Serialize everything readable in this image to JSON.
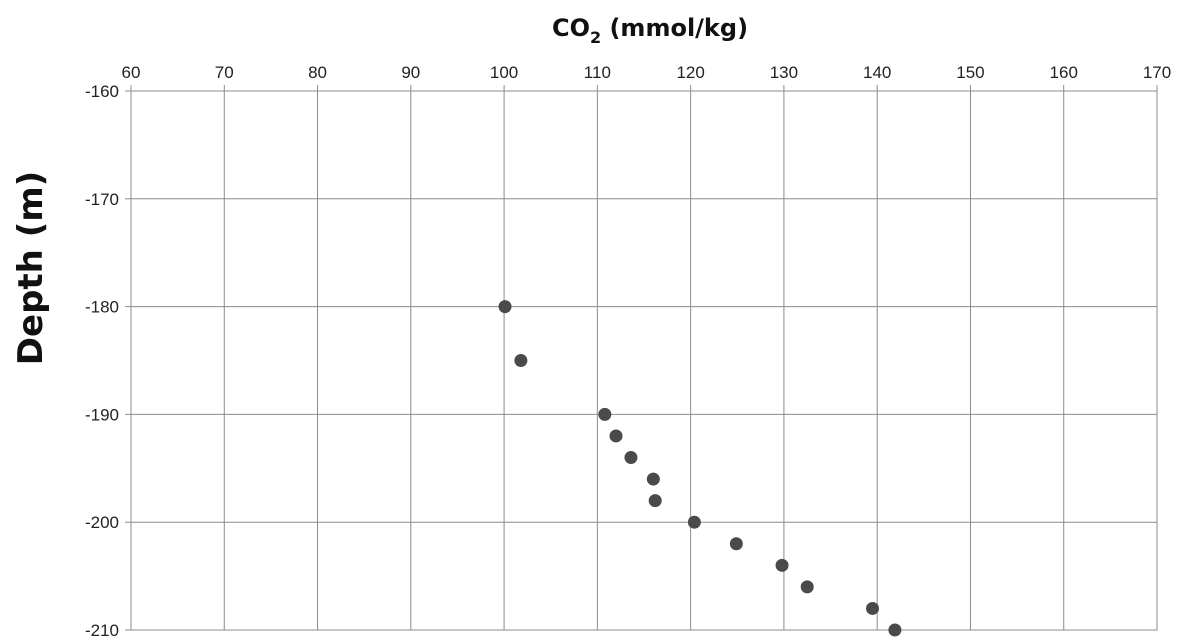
{
  "chart_data": {
    "type": "scatter",
    "xlabel": "CO2 (mmol/kg)",
    "xlabel_main": "CO",
    "xlabel_sub": "2",
    "xlabel_rest": " (mmol/kg)",
    "ylabel": "Depth (m)",
    "xlim": [
      60,
      170
    ],
    "ylim": [
      -210,
      -160
    ],
    "x_ticks": [
      60,
      70,
      80,
      90,
      100,
      110,
      120,
      130,
      140,
      150,
      160,
      170
    ],
    "y_ticks": [
      -160,
      -170,
      -180,
      -190,
      -200,
      -210
    ],
    "x_axis_position": "top",
    "grid": true,
    "marker_color": "#4a4a4a",
    "points": [
      {
        "x": 100.1,
        "y": -180
      },
      {
        "x": 101.8,
        "y": -185
      },
      {
        "x": 110.8,
        "y": -190
      },
      {
        "x": 112.0,
        "y": -192
      },
      {
        "x": 113.6,
        "y": -194
      },
      {
        "x": 116.0,
        "y": -196
      },
      {
        "x": 116.2,
        "y": -198
      },
      {
        "x": 120.4,
        "y": -200
      },
      {
        "x": 124.9,
        "y": -202
      },
      {
        "x": 129.8,
        "y": -204
      },
      {
        "x": 132.5,
        "y": -206
      },
      {
        "x": 139.5,
        "y": -208
      },
      {
        "x": 141.9,
        "y": -210
      }
    ]
  }
}
